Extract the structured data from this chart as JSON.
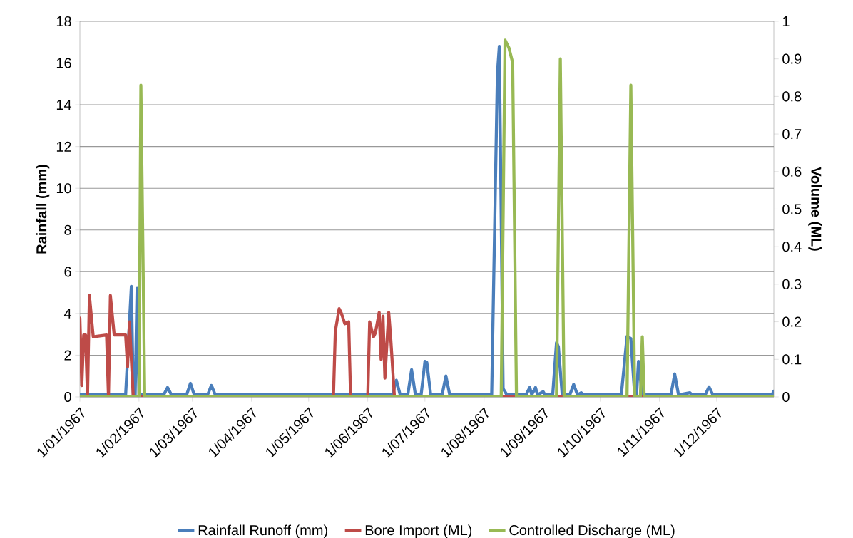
{
  "chart_data": {
    "type": "line",
    "ylabel": "Rainfall (mm)",
    "y2label": "Volume (ML)",
    "xlim": [
      "1967-01-01",
      "1967-12-31"
    ],
    "xticks": [
      {
        "value": "1967-01-01",
        "label": "1/01/1967"
      },
      {
        "value": "1967-02-01",
        "label": "1/02/1967"
      },
      {
        "value": "1967-03-01",
        "label": "1/03/1967"
      },
      {
        "value": "1967-04-01",
        "label": "1/04/1967"
      },
      {
        "value": "1967-05-01",
        "label": "1/05/1967"
      },
      {
        "value": "1967-06-01",
        "label": "1/06/1967"
      },
      {
        "value": "1967-07-01",
        "label": "1/07/1967"
      },
      {
        "value": "1967-08-01",
        "label": "1/08/1967"
      },
      {
        "value": "1967-09-01",
        "label": "1/09/1967"
      },
      {
        "value": "1967-10-01",
        "label": "1/10/1967"
      },
      {
        "value": "1967-11-01",
        "label": "1/11/1967"
      },
      {
        "value": "1967-12-01",
        "label": "1/12/1967"
      }
    ],
    "ylim": [
      0,
      18
    ],
    "yticks": [
      0,
      2,
      4,
      6,
      8,
      10,
      12,
      14,
      16,
      18
    ],
    "y2lim": [
      0,
      1
    ],
    "y2ticks": [
      0,
      0.1,
      0.2,
      0.3,
      0.4,
      0.5,
      0.6,
      0.7,
      0.8,
      0.9,
      1
    ],
    "grid": "y",
    "legend": "bottom",
    "line_style": "solid",
    "series": [
      {
        "name": "Rainfall Runoff (mm)",
        "color": "#4a7ebb",
        "x": [
          "1967-01-01",
          "1967-01-25",
          "1967-01-28",
          "1967-01-29",
          "1967-01-30",
          "1967-01-31",
          "1967-02-01",
          "1967-02-14",
          "1967-02-16",
          "1967-02-18",
          "1967-02-26",
          "1967-02-28",
          "1967-03-02",
          "1967-03-09",
          "1967-03-11",
          "1967-03-13",
          "1967-06-14",
          "1967-06-16",
          "1967-06-18",
          "1967-06-22",
          "1967-06-24",
          "1967-06-26",
          "1967-06-29",
          "1967-07-01",
          "1967-07-02",
          "1967-07-04",
          "1967-07-10",
          "1967-07-12",
          "1967-07-14",
          "1967-08-05",
          "1967-08-08",
          "1967-08-09",
          "1967-08-11",
          "1967-08-13",
          "1967-08-23",
          "1967-08-25",
          "1967-08-26",
          "1967-08-28",
          "1967-08-29",
          "1967-09-01",
          "1967-09-02",
          "1967-09-06",
          "1967-09-08",
          "1967-09-09",
          "1967-09-11",
          "1967-09-15",
          "1967-09-17",
          "1967-09-19",
          "1967-09-21",
          "1967-09-22",
          "1967-10-12",
          "1967-10-15",
          "1967-10-17",
          "1967-10-19",
          "1967-10-20",
          "1967-10-21",
          "1967-10-23",
          "1967-11-07",
          "1967-11-09",
          "1967-11-11",
          "1967-11-17",
          "1967-11-18",
          "1967-11-25",
          "1967-11-27",
          "1967-11-29",
          "1967-12-30",
          "1967-12-31"
        ],
        "values": [
          0.1,
          0.1,
          5.3,
          0.1,
          0.1,
          5.2,
          0.1,
          0.1,
          0.45,
          0.1,
          0.1,
          0.65,
          0.1,
          0.1,
          0.55,
          0.1,
          0.1,
          0.8,
          0.1,
          0.1,
          1.3,
          0.1,
          0.1,
          1.7,
          1.65,
          0.1,
          0.1,
          1.0,
          0.1,
          0.1,
          15.5,
          16.8,
          0.4,
          0.1,
          0.1,
          0.45,
          0.1,
          0.45,
          0.1,
          0.25,
          0.1,
          0.1,
          2.6,
          2.4,
          0.1,
          0.1,
          0.6,
          0.1,
          0.2,
          0.1,
          0.1,
          2.9,
          2.8,
          0.1,
          0.1,
          1.7,
          0.1,
          0.1,
          1.1,
          0.1,
          0.2,
          0.1,
          0.1,
          0.48,
          0.1,
          0.1,
          0.27
        ]
      },
      {
        "name": "Bore Import (ML)",
        "color": "#be4b48",
        "axis": "y2",
        "x": [
          "1967-01-01",
          "1967-01-02",
          "1967-01-03",
          "1967-01-04",
          "1967-01-05",
          "1967-01-06",
          "1967-01-08",
          "1967-01-15",
          "1967-01-16",
          "1967-01-17",
          "1967-01-19",
          "1967-01-25",
          "1967-01-26",
          "1967-01-27",
          "1967-01-29",
          "1967-05-14",
          "1967-05-15",
          "1967-05-17",
          "1967-05-18",
          "1967-05-20",
          "1967-05-22",
          "1967-05-23",
          "1967-06-01",
          "1967-06-02",
          "1967-06-04",
          "1967-06-05",
          "1967-06-07",
          "1967-06-08",
          "1967-06-09",
          "1967-06-10",
          "1967-06-12",
          "1967-06-13",
          "1967-06-15",
          "1967-12-31"
        ],
        "values": [
          0.21,
          0.03,
          0.165,
          0.165,
          0,
          0.27,
          0.16,
          0.165,
          0,
          0.27,
          0.165,
          0.165,
          0.08,
          0.2,
          0,
          0,
          0.175,
          0.235,
          0.225,
          0.195,
          0.2,
          0,
          0,
          0.2,
          0.16,
          0.17,
          0.225,
          0.1,
          0.215,
          0.05,
          0.225,
          0.16,
          0,
          0
        ]
      },
      {
        "name": "Controlled Discharge (ML)",
        "color": "#98b954",
        "axis": "y2",
        "x": [
          "1967-01-01",
          "1967-02-01",
          "1967-02-02",
          "1967-02-04",
          "1967-08-10",
          "1967-08-12",
          "1967-08-14",
          "1967-08-16",
          "1967-08-18",
          "1967-09-08",
          "1967-09-10",
          "1967-09-12",
          "1967-10-15",
          "1967-10-17",
          "1967-10-19",
          "1967-10-22",
          "1967-10-23",
          "1967-10-24",
          "1967-12-31"
        ],
        "values": [
          0,
          0,
          0.83,
          0,
          0,
          0.95,
          0.93,
          0.89,
          0,
          0,
          0.9,
          0,
          0,
          0.83,
          0,
          0,
          0.16,
          0,
          0
        ]
      }
    ]
  }
}
